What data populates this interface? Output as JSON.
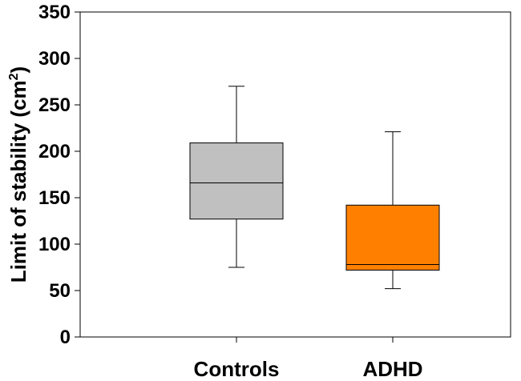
{
  "chart_data": {
    "type": "box",
    "categories": [
      "Controls",
      "ADHD"
    ],
    "boxes": [
      {
        "category": "Controls",
        "min": 75,
        "q1": 127,
        "median": 166,
        "q3": 209,
        "max": 270,
        "color": "#c0c0c0"
      },
      {
        "category": "ADHD",
        "min": 52,
        "q1": 72,
        "median": 78,
        "q3": 142,
        "max": 221,
        "color": "#ff8000"
      }
    ],
    "ylabel_main": "Limit of stability (cm",
    "ylabel_sup": "2",
    "ylabel_close": ")",
    "ylim": [
      0,
      350
    ],
    "yticks": [
      "0",
      "50",
      "100",
      "150",
      "200",
      "250",
      "300",
      "350"
    ],
    "grid": false
  }
}
